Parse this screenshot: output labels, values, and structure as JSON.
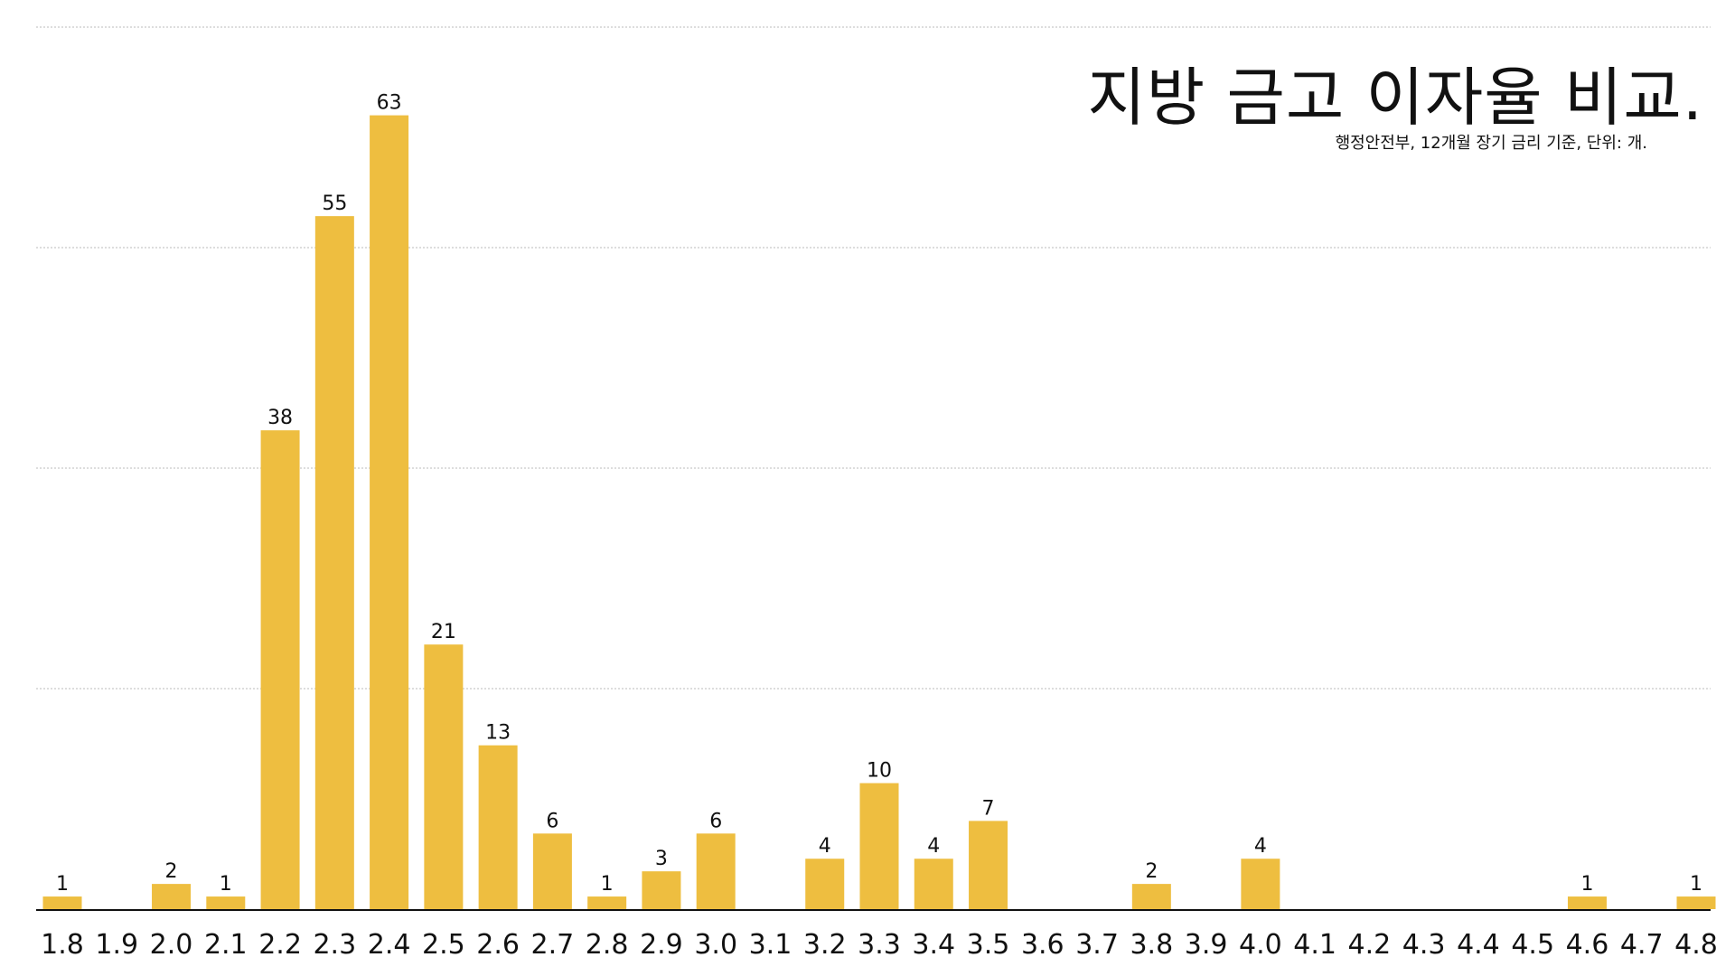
{
  "chart_data": {
    "type": "bar",
    "title": "지방 금고 이자율 비교.",
    "subtitle": "행정안전부, 12개월 장기 금리 기준, 단위: 개.",
    "categories": [
      "1.8",
      "1.9",
      "2.0",
      "2.1",
      "2.2",
      "2.3",
      "2.4",
      "2.5",
      "2.6",
      "2.7",
      "2.8",
      "2.9",
      "3.0",
      "3.1",
      "3.2",
      "3.3",
      "3.4",
      "3.5",
      "3.6",
      "3.7",
      "3.8",
      "3.9",
      "4.0",
      "4.1",
      "4.2",
      "4.3",
      "4.4",
      "4.5",
      "4.6",
      "4.7",
      "4.8"
    ],
    "values": [
      1,
      0,
      2,
      1,
      38,
      55,
      63,
      21,
      13,
      6,
      1,
      3,
      6,
      0,
      4,
      10,
      4,
      7,
      0,
      0,
      2,
      0,
      4,
      0,
      0,
      0,
      0,
      0,
      1,
      0,
      1
    ],
    "xlabel": "",
    "ylabel": "",
    "ylim": [
      0,
      70
    ],
    "gridlines": [
      17.5,
      35,
      52.5,
      70
    ],
    "grid": true,
    "bar_color": "#EEBE40",
    "grid_color": "#bbbbbb",
    "show_value_labels": true
  }
}
